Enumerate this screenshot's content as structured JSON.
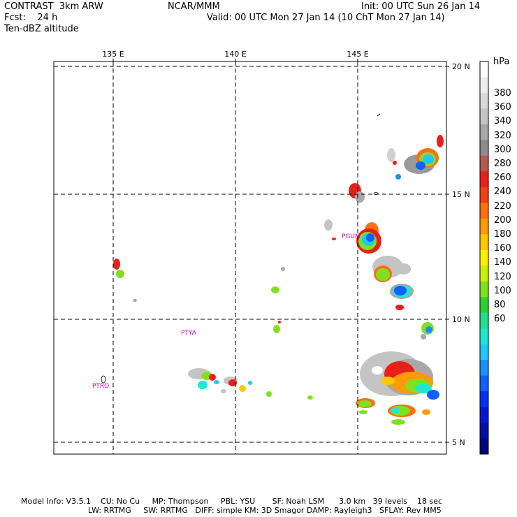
{
  "header": {
    "left_line1": "CONTRAST  3km ARW",
    "left_line2": "Fcst:    24 h",
    "left_line3": "Ten-dBZ altitude",
    "center": "NCAR/MMM",
    "right_line1": "Init: 00 UTC Sun 26 Jan 14",
    "right_line2": "Valid: 00 UTC Mon 27 Jan 14 (10 ChT Mon 27 Jan 14)"
  },
  "map": {
    "lon_labels": [
      "135 E",
      "140 E",
      "145 E"
    ],
    "lat_labels": [
      "20 N",
      "15 N",
      "10 N",
      "5 N"
    ],
    "stations": [
      "PGUM",
      "PTYA",
      "PTRO"
    ]
  },
  "colorbar": {
    "unit": "hPa",
    "labels": [
      "380",
      "360",
      "340",
      "320",
      "300",
      "280",
      "260",
      "240",
      "220",
      "200",
      "180",
      "160",
      "140",
      "120",
      "100",
      "80",
      "60"
    ],
    "colors": [
      "#ffffff",
      "#ececec",
      "#d9d9d9",
      "#c4c4c4",
      "#a8a8a8",
      "#8c8c8c",
      "#b05a50",
      "#e8201a",
      "#f04018",
      "#ff7010",
      "#ff9a08",
      "#ffc800",
      "#fff000",
      "#c8f000",
      "#80e020",
      "#30d030",
      "#20e090",
      "#20e8d0",
      "#20c8ff",
      "#1890ff",
      "#1060ff",
      "#0830f0",
      "#0818d0",
      "#0010a0",
      "#000878"
    ]
  },
  "footer": {
    "line1": "Model Info: V3.5.1    CU: No Cu     MP: Thompson     PBL: YSU       SF: Noah LSM      3.0 km   39 levels    18 sec",
    "line2": "LW: RRTMG     SW: RRTMG   DIFF: simple KM: 3D Smagor DAMP: Rayleigh3   SFLAY: Rev MM5"
  }
}
